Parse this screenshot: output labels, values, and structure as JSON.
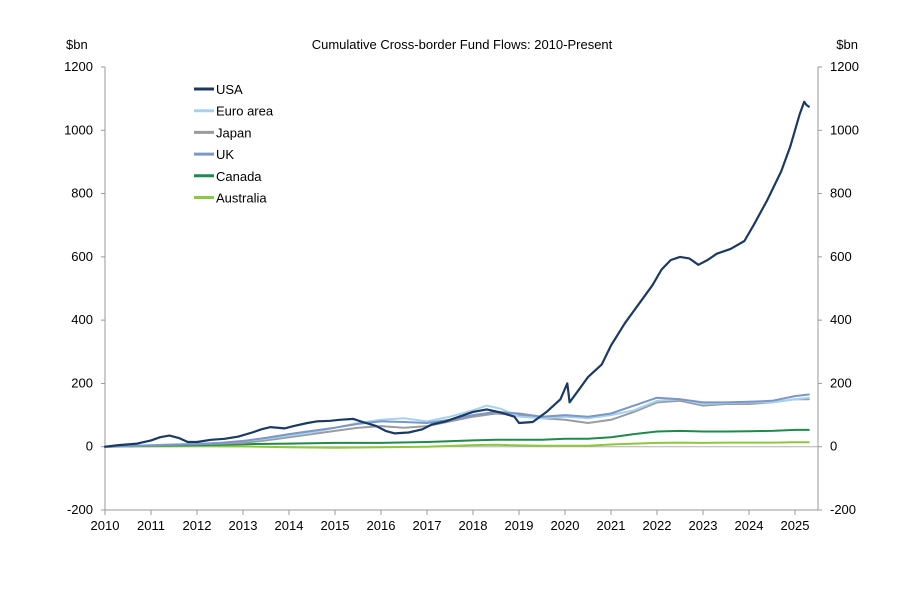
{
  "chart_data": {
    "type": "line",
    "title": "Cumulative Cross-border Fund Flows: 2010-Present",
    "ylabel_left": "$bn",
    "ylabel_right": "$bn",
    "xlabel": "",
    "xlim": [
      2010,
      2025.5
    ],
    "ylim": [
      -200,
      1200
    ],
    "yticks": [
      -200,
      0,
      200,
      400,
      600,
      800,
      1000,
      1200
    ],
    "xticks": [
      2010,
      2011,
      2012,
      2013,
      2014,
      2015,
      2016,
      2017,
      2018,
      2019,
      2020,
      2021,
      2022,
      2023,
      2024,
      2025
    ],
    "grid": false,
    "legend_position": "top-left",
    "series": [
      {
        "name": "USA",
        "color": "#1b3a63",
        "x": [
          2010.0,
          2010.3,
          2010.7,
          2011.0,
          2011.2,
          2011.4,
          2011.6,
          2011.8,
          2012.0,
          2012.3,
          2012.6,
          2012.9,
          2013.2,
          2013.4,
          2013.6,
          2013.9,
          2014.1,
          2014.4,
          2014.6,
          2014.9,
          2015.1,
          2015.4,
          2015.6,
          2015.9,
          2016.1,
          2016.3,
          2016.6,
          2016.9,
          2017.1,
          2017.4,
          2017.7,
          2018.0,
          2018.3,
          2018.6,
          2018.9,
          2019.0,
          2019.3,
          2019.6,
          2019.9,
          2020.05,
          2020.1,
          2020.3,
          2020.5,
          2020.8,
          2021.0,
          2021.3,
          2021.6,
          2021.9,
          2022.1,
          2022.3,
          2022.5,
          2022.7,
          2022.9,
          2023.1,
          2023.3,
          2023.6,
          2023.9,
          2024.1,
          2024.4,
          2024.7,
          2024.9,
          2025.1,
          2025.2,
          2025.25,
          2025.3
        ],
        "values": [
          0,
          5,
          10,
          20,
          30,
          35,
          28,
          15,
          15,
          22,
          25,
          32,
          45,
          55,
          62,
          58,
          65,
          75,
          80,
          82,
          85,
          88,
          78,
          65,
          50,
          42,
          45,
          55,
          70,
          80,
          95,
          110,
          118,
          108,
          95,
          75,
          78,
          110,
          150,
          200,
          140,
          180,
          220,
          260,
          320,
          390,
          450,
          510,
          560,
          590,
          600,
          595,
          575,
          590,
          610,
          625,
          650,
          700,
          780,
          870,
          950,
          1050,
          1090,
          1080,
          1075
        ]
      },
      {
        "name": "Euro area",
        "color": "#a6d2ee",
        "x": [
          2010.0,
          2010.5,
          2011.0,
          2011.5,
          2012.0,
          2012.5,
          2013.0,
          2013.5,
          2014.0,
          2014.5,
          2015.0,
          2015.5,
          2016.0,
          2016.5,
          2017.0,
          2017.5,
          2018.0,
          2018.3,
          2018.6,
          2019.0,
          2019.5,
          2020.0,
          2020.5,
          2021.0,
          2021.5,
          2022.0,
          2022.5,
          2023.0,
          2023.5,
          2024.0,
          2024.5,
          2025.0,
          2025.3
        ],
        "values": [
          0,
          2,
          5,
          8,
          10,
          12,
          18,
          25,
          35,
          45,
          60,
          75,
          85,
          90,
          80,
          95,
          115,
          130,
          120,
          95,
          90,
          95,
          90,
          100,
          115,
          145,
          150,
          135,
          138,
          140,
          140,
          150,
          155
        ]
      },
      {
        "name": "Japan",
        "color": "#9a9ca0",
        "x": [
          2010.0,
          2010.5,
          2011.0,
          2011.5,
          2012.0,
          2012.5,
          2013.0,
          2013.5,
          2014.0,
          2014.5,
          2015.0,
          2015.5,
          2016.0,
          2016.5,
          2017.0,
          2017.5,
          2018.0,
          2018.5,
          2019.0,
          2019.5,
          2020.0,
          2020.5,
          2021.0,
          2021.5,
          2022.0,
          2022.5,
          2023.0,
          2023.5,
          2024.0,
          2024.5,
          2025.0,
          2025.3
        ],
        "values": [
          0,
          2,
          4,
          6,
          8,
          10,
          12,
          20,
          30,
          40,
          50,
          60,
          65,
          60,
          65,
          80,
          95,
          105,
          100,
          90,
          85,
          75,
          85,
          110,
          140,
          145,
          130,
          135,
          135,
          140,
          150,
          150
        ]
      },
      {
        "name": "UK",
        "color": "#7b96c8",
        "x": [
          2010.0,
          2010.5,
          2011.0,
          2011.5,
          2012.0,
          2012.5,
          2013.0,
          2013.5,
          2014.0,
          2014.5,
          2015.0,
          2015.5,
          2016.0,
          2016.5,
          2017.0,
          2017.5,
          2018.0,
          2018.5,
          2019.0,
          2019.5,
          2020.0,
          2020.5,
          2021.0,
          2021.5,
          2022.0,
          2022.5,
          2023.0,
          2023.5,
          2024.0,
          2024.5,
          2025.0,
          2025.3
        ],
        "values": [
          0,
          2,
          4,
          6,
          8,
          12,
          18,
          28,
          40,
          50,
          60,
          72,
          80,
          78,
          75,
          85,
          100,
          110,
          105,
          95,
          100,
          95,
          105,
          130,
          155,
          150,
          140,
          140,
          142,
          145,
          160,
          165
        ]
      },
      {
        "name": "Canada",
        "color": "#1f8a4c",
        "x": [
          2010.0,
          2011.0,
          2012.0,
          2013.0,
          2014.0,
          2015.0,
          2016.0,
          2017.0,
          2018.0,
          2018.5,
          2019.0,
          2019.5,
          2020.0,
          2020.5,
          2021.0,
          2021.5,
          2022.0,
          2022.5,
          2023.0,
          2023.5,
          2024.0,
          2024.5,
          2025.0,
          2025.3
        ],
        "values": [
          0,
          3,
          5,
          8,
          10,
          12,
          12,
          15,
          20,
          22,
          22,
          22,
          25,
          25,
          30,
          40,
          48,
          50,
          48,
          48,
          49,
          50,
          53,
          53
        ]
      },
      {
        "name": "Australia",
        "color": "#8dc63f",
        "x": [
          2010.0,
          2011.0,
          2012.0,
          2013.0,
          2014.0,
          2015.0,
          2016.0,
          2017.0,
          2018.0,
          2018.5,
          2019.0,
          2019.5,
          2020.0,
          2020.5,
          2021.0,
          2021.5,
          2022.0,
          2022.5,
          2023.0,
          2023.5,
          2024.0,
          2024.5,
          2025.0,
          2025.3
        ],
        "values": [
          0,
          1,
          2,
          1,
          -2,
          -3,
          -2,
          0,
          5,
          6,
          4,
          3,
          3,
          3,
          7,
          10,
          12,
          13,
          12,
          13,
          13,
          13,
          14,
          14
        ]
      }
    ]
  }
}
